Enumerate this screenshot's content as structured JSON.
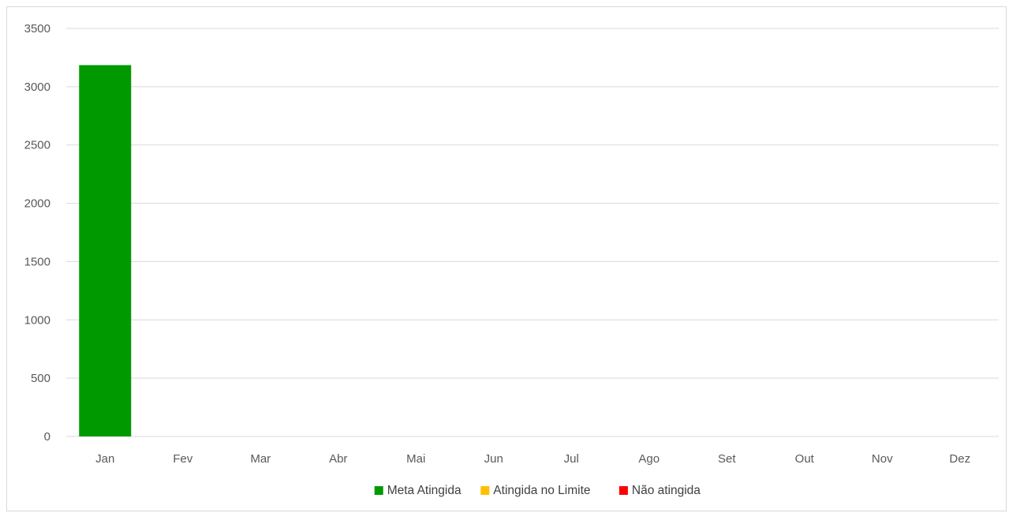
{
  "chart_data": {
    "type": "bar",
    "categories": [
      "Jan",
      "Fev",
      "Mar",
      "Abr",
      "Mai",
      "Jun",
      "Jul",
      "Ago",
      "Set",
      "Out",
      "Nov",
      "Dez"
    ],
    "series": [
      {
        "name": "Meta Atingida",
        "color": "#009900",
        "values": [
          3185,
          0,
          0,
          0,
          0,
          0,
          0,
          0,
          0,
          0,
          0,
          0
        ]
      },
      {
        "name": "Atingida no Limite",
        "color": "#ffc000",
        "values": [
          0,
          0,
          0,
          0,
          0,
          0,
          0,
          0,
          0,
          0,
          0,
          0
        ]
      },
      {
        "name": "Não atingida",
        "color": "#ff0000",
        "values": [
          0,
          0,
          0,
          0,
          0,
          0,
          0,
          0,
          0,
          0,
          0,
          0
        ]
      }
    ],
    "stacked": true,
    "ylim": [
      0,
      3500
    ],
    "yticks": [
      0,
      500,
      1000,
      1500,
      2000,
      2500,
      3000,
      3500
    ],
    "grid": true,
    "legend": "bottom",
    "title": "",
    "xlabel": "",
    "ylabel": ""
  }
}
